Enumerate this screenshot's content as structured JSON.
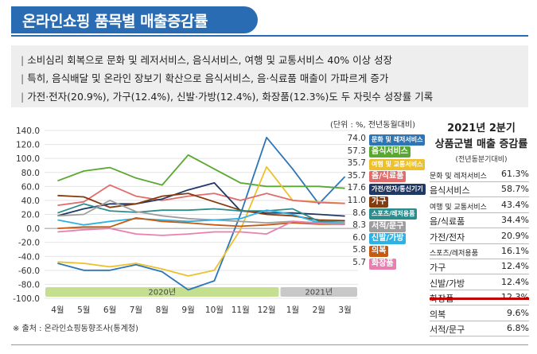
{
  "header": {
    "title": "온라인쇼핑 품목별 매출증감률",
    "bullets": [
      "소비심리 회복으로 문화 및 레저서비스, 음식서비스, 여행 및 교통서비스 40% 이상 성장",
      "특히, 음식배달 및 온라인 장보기 확산으로 음식서비스, 음·식료품 매출이 가파르게 증가",
      "가전·전자(20.9%), 가구(12.4%), 신발·가방(12.4%), 화장품(12.3%)도 두 자릿수 성장률 기록"
    ]
  },
  "unit_note": "(단위 : %, 전년동월대비)",
  "source_note": "※ 출처 : 온라인쇼핑동향조사(통계청)",
  "table": {
    "title_line1": "2021년 2분기",
    "title_line2": "상품군별 매출 증감률",
    "subtitle": "(전년동분기대비)",
    "rows": [
      {
        "label": "문화 및 레저서비스",
        "value": "61.3%"
      },
      {
        "label": "음식서비스",
        "value": "58.7%"
      },
      {
        "label": "여행 및 교통서비스",
        "value": "43.4%"
      },
      {
        "label": "음/식료품",
        "value": "34.4%"
      },
      {
        "label": "가전/전자",
        "value": "20.9%"
      },
      {
        "label": "스포츠/레저용품",
        "value": "16.1%"
      },
      {
        "label": "가구",
        "value": "12.4%"
      },
      {
        "label": "신발/가방",
        "value": "12.4%"
      },
      {
        "label": "화장품",
        "value": "12.3%"
      },
      {
        "label": "의복",
        "value": "9.6%"
      },
      {
        "label": "서적/문구",
        "value": "6.8%"
      }
    ]
  },
  "chart_data": {
    "type": "line",
    "x": [
      "4월",
      "5월",
      "6월",
      "7월",
      "8월",
      "9월",
      "10월",
      "11월",
      "12월",
      "1월",
      "2월",
      "3월"
    ],
    "year_bands": [
      {
        "label": "2020년",
        "from": "4월",
        "to": "12월",
        "color": "#c5df91"
      },
      {
        "label": "2021년",
        "from": "1월",
        "to": "3월",
        "color": "#c8c8c8"
      }
    ],
    "ylim": [
      -100,
      140
    ],
    "yticks": [
      "140.0",
      "120.0",
      "100.0",
      "80.0",
      "60.0",
      "40.0",
      "20.0",
      "0.0",
      "-20.0",
      "-40.0",
      "-60.0",
      "-80.0",
      "-100.0"
    ],
    "series": [
      {
        "name": "문화 및 레저서비스",
        "end_label": "74.0",
        "color": "#2e75b6",
        "values": [
          -50,
          -60,
          -60,
          -52,
          -62,
          -88,
          -75,
          20,
          130,
          85,
          35,
          74
        ]
      },
      {
        "name": "음식서비스",
        "end_label": "57.3",
        "color": "#5aa832",
        "values": [
          68,
          82,
          87,
          72,
          62,
          105,
          85,
          65,
          60,
          60,
          60,
          57.3
        ]
      },
      {
        "name": "여행 및 교통서비스",
        "end_label": "35.7",
        "color": "#ecc12d",
        "values": [
          -48,
          -50,
          -55,
          -50,
          -58,
          -68,
          -60,
          -2,
          88,
          40,
          38,
          35.7
        ]
      },
      {
        "name": "음/식료품",
        "end_label": "35.7",
        "color": "#e26b6b",
        "values": [
          33,
          38,
          62,
          46,
          40,
          46,
          50,
          40,
          50,
          40,
          37,
          35.7
        ]
      },
      {
        "name": "가전/전자/통신기기",
        "end_label": "17.6",
        "color": "#1f3864",
        "values": [
          18,
          28,
          35,
          35,
          42,
          55,
          65,
          25,
          22,
          22,
          20,
          17.6
        ]
      },
      {
        "name": "가구",
        "end_label": "11.0",
        "color": "#843c0c",
        "values": [
          47,
          45,
          30,
          35,
          46,
          50,
          38,
          26,
          20,
          18,
          12,
          11.0
        ]
      },
      {
        "name": "스포츠/레저용품",
        "end_label": "8.6",
        "color": "#2a8c8c",
        "values": [
          22,
          35,
          25,
          23,
          26,
          26,
          28,
          25,
          25,
          28,
          10,
          8.6
        ]
      },
      {
        "name": "서적/문구",
        "end_label": "8.3",
        "color": "#9e9e9e",
        "values": [
          18,
          20,
          40,
          24,
          18,
          14,
          12,
          10,
          8,
          10,
          8,
          8.3
        ]
      },
      {
        "name": "신발/가방",
        "end_label": "6.0",
        "color": "#2eb2e3",
        "values": [
          12,
          5,
          10,
          14,
          12,
          10,
          12,
          14,
          26,
          20,
          8,
          6.0
        ]
      },
      {
        "name": "의복",
        "end_label": "5.8",
        "color": "#c65a11",
        "values": [
          0,
          2,
          2,
          15,
          10,
          8,
          5,
          3,
          5,
          8,
          6,
          5.8
        ]
      },
      {
        "name": "화장품",
        "end_label": "5.7",
        "color": "#e97fb0",
        "values": [
          -5,
          -2,
          0,
          -8,
          -10,
          -8,
          -5,
          -5,
          -8,
          10,
          7,
          5.7
        ]
      }
    ]
  }
}
